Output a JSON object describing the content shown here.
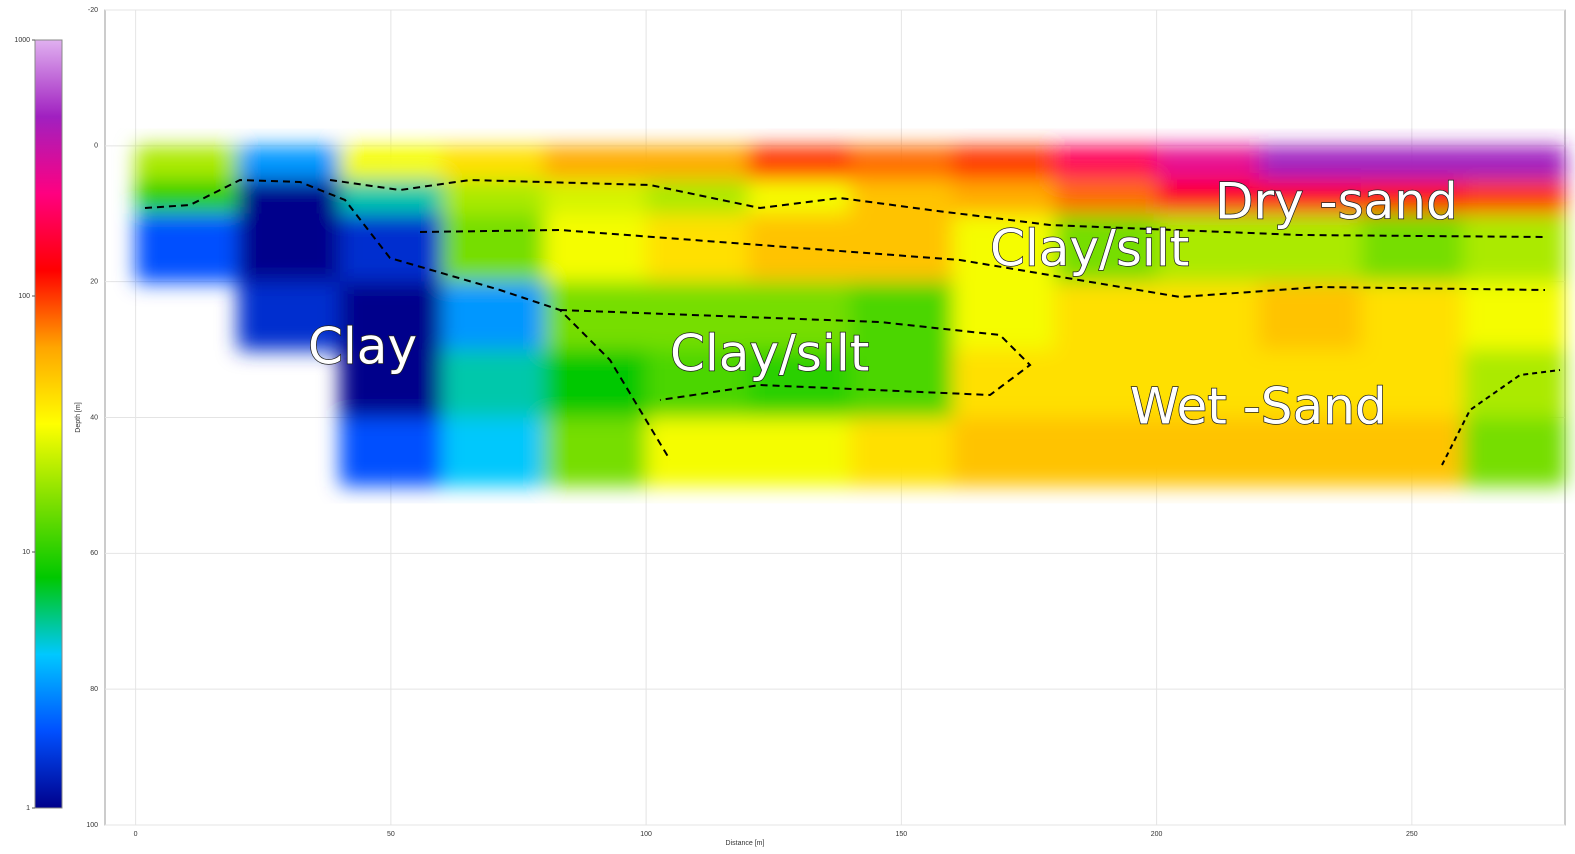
{
  "chart_data": {
    "type": "heatmap",
    "xlabel": "Distance [m]",
    "ylabel": "Depth [m]",
    "xlim": [
      -6,
      280
    ],
    "xticks": [
      0,
      50,
      100,
      150,
      200,
      250
    ],
    "ylim": [
      -20,
      100
    ],
    "yticks": [
      -20,
      0,
      20,
      40,
      60,
      80,
      100
    ],
    "y_inverted": true,
    "grid": true,
    "x": [
      0,
      20,
      40,
      60,
      80,
      100,
      120,
      140,
      160,
      180,
      200,
      220,
      240,
      260,
      280
    ],
    "y": [
      0,
      5,
      10,
      20,
      30,
      40,
      50
    ],
    "z": [
      [
        20,
        3,
        30,
        40,
        60,
        60,
        100,
        80,
        100,
        200,
        300,
        500,
        500,
        500
      ],
      [
        10,
        1,
        5,
        20,
        25,
        20,
        30,
        50,
        60,
        80,
        150,
        150,
        120,
        100
      ],
      [
        2,
        1,
        1.5,
        15,
        30,
        40,
        50,
        50,
        30,
        15,
        20,
        20,
        15,
        20
      ],
      [
        null,
        1.5,
        1,
        3,
        15,
        15,
        15,
        12,
        30,
        40,
        40,
        50,
        40,
        30
      ],
      [
        null,
        null,
        1,
        5,
        8,
        12,
        10,
        12,
        40,
        40,
        40,
        40,
        40,
        20
      ],
      [
        null,
        null,
        2,
        4,
        15,
        30,
        30,
        40,
        50,
        50,
        50,
        50,
        50,
        15
      ]
    ],
    "colorbar": {
      "log": true,
      "clim": [
        1,
        1000
      ],
      "ticks": [
        1,
        10,
        100,
        1000
      ],
      "colormap": [
        "#00008b",
        "#0050ff",
        "#00c8ff",
        "#00c800",
        "#80e000",
        "#ffff00",
        "#ffa500",
        "#ff0000",
        "#ff0080",
        "#a020c0",
        "#e0b0f0"
      ]
    },
    "annotations": [
      "Clay",
      "Clay/silt",
      "Clay/silt",
      "Dry -sand",
      "Wet -Sand"
    ]
  }
}
